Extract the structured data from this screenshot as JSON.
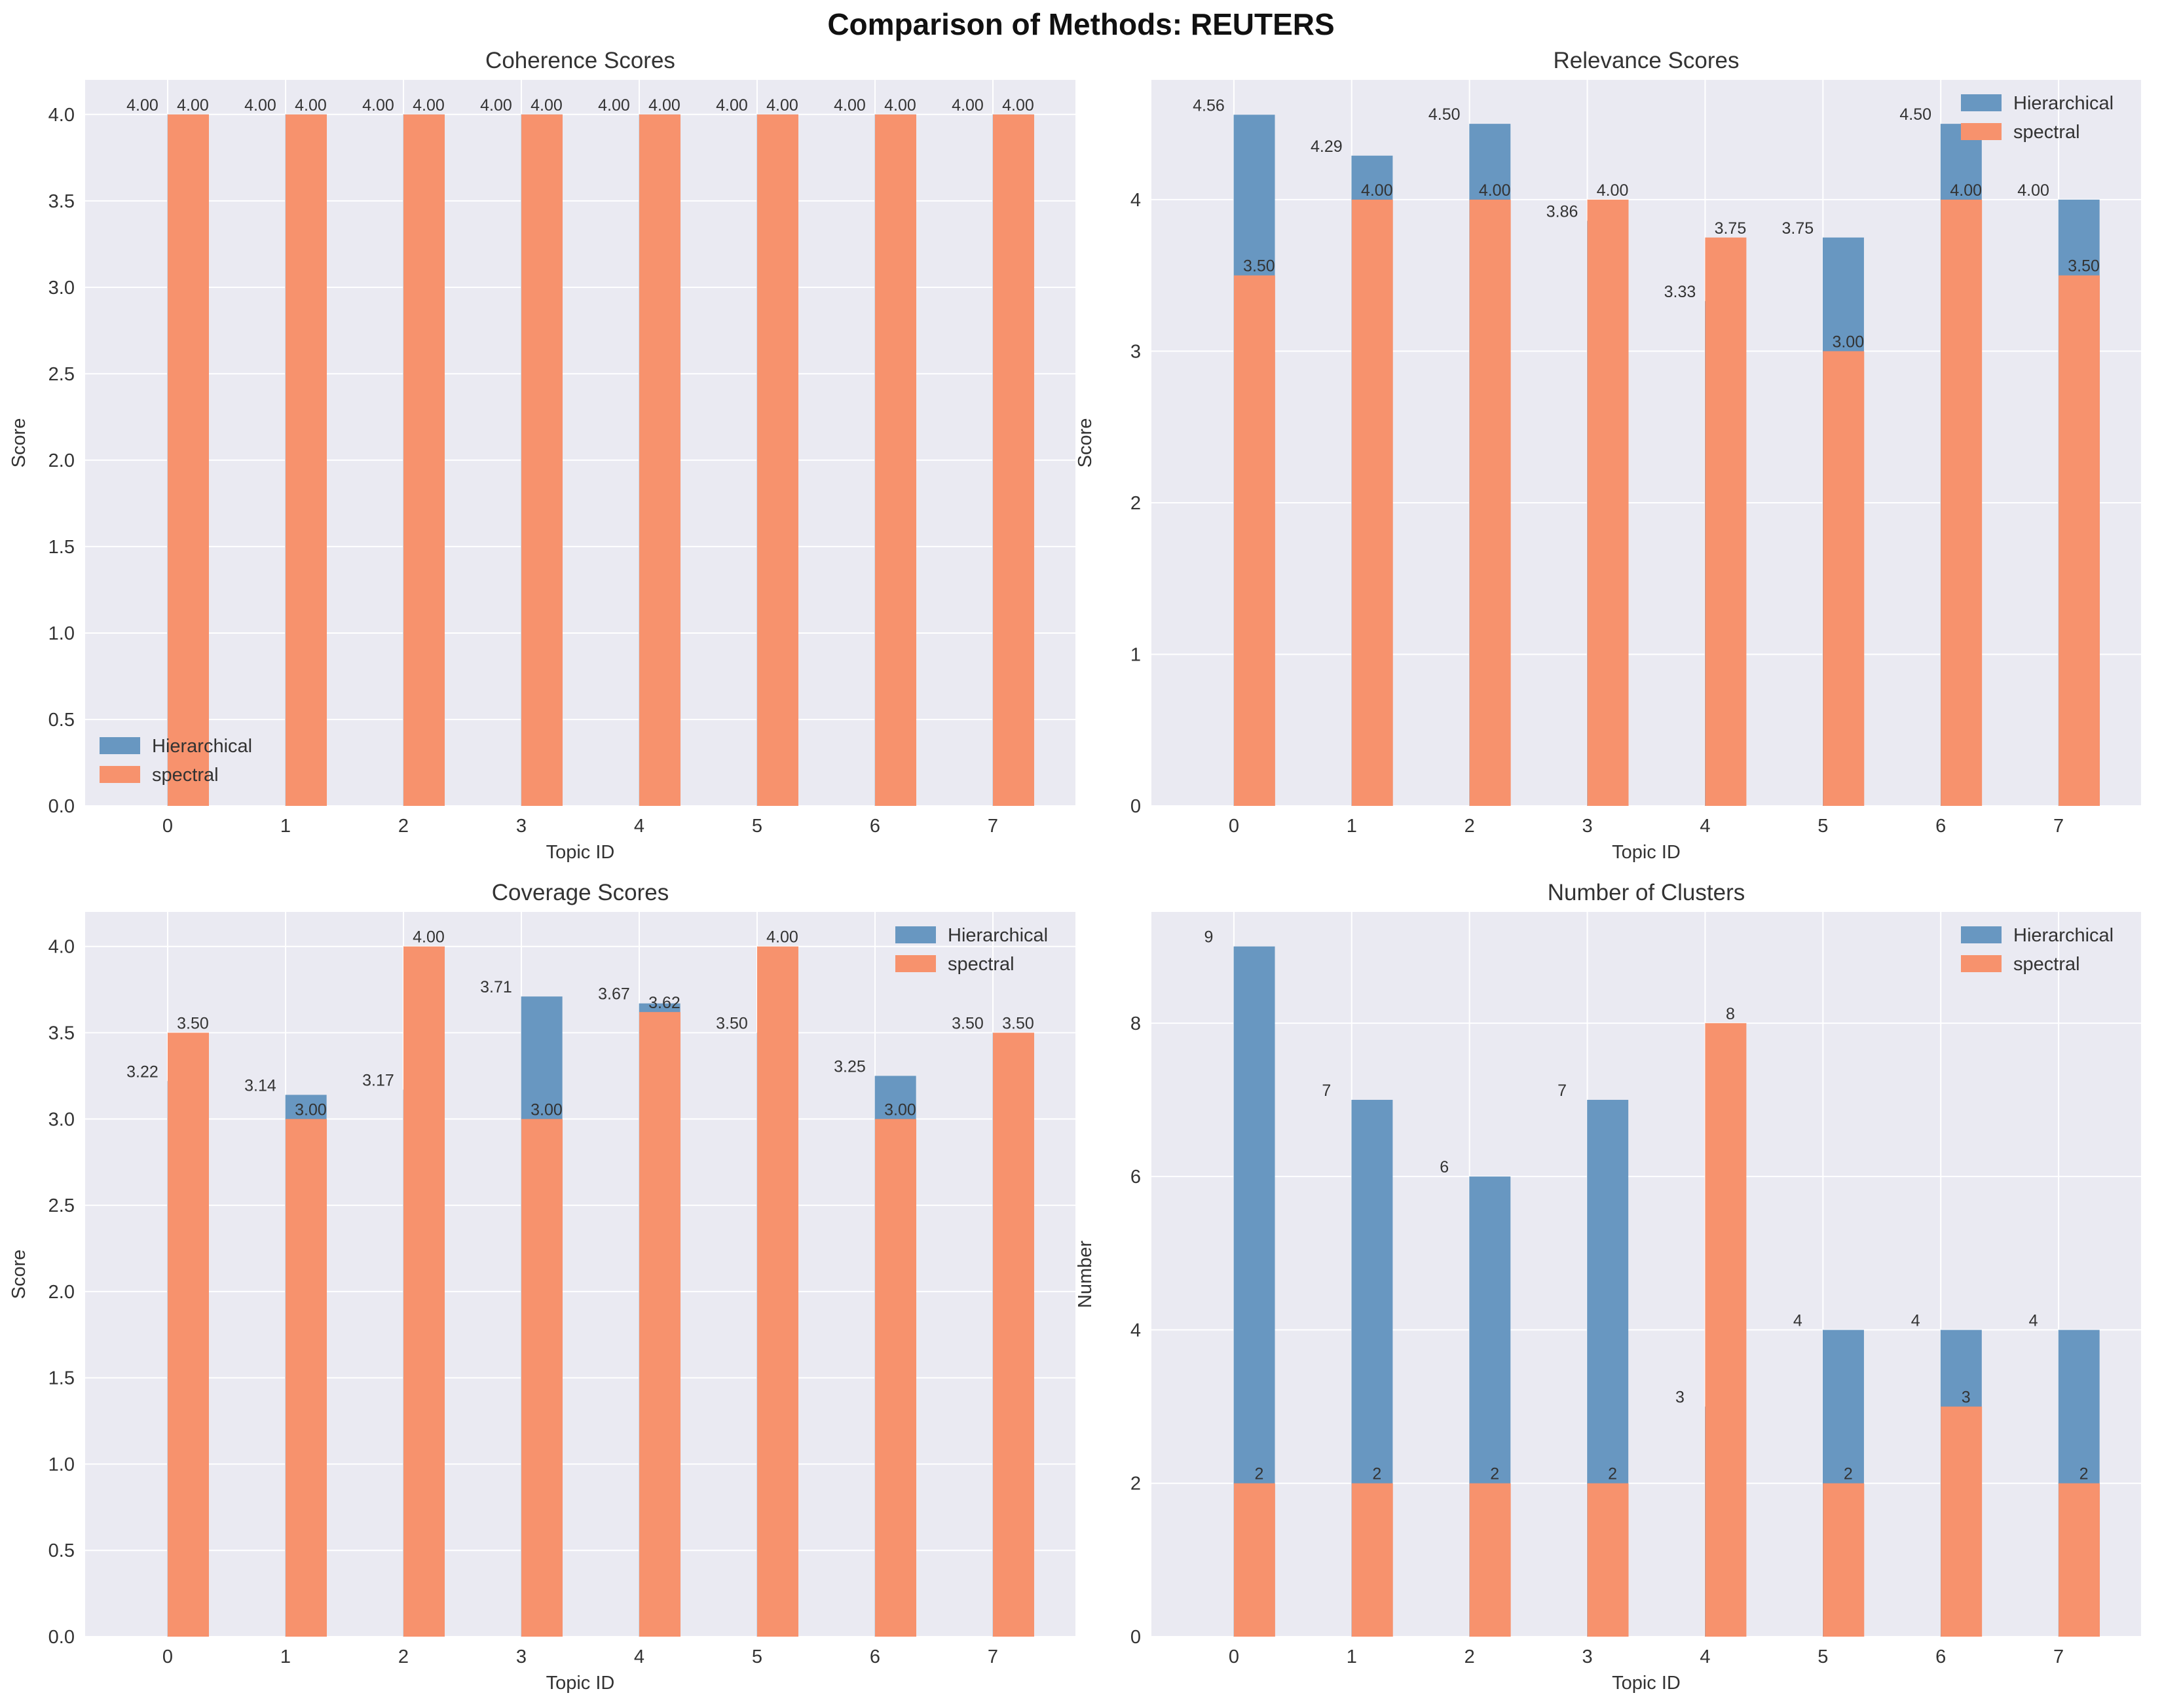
{
  "title": "Comparison of Methods: REUTERS",
  "colors": {
    "Hierarchical": "#6897c1",
    "spectral": "#f7926d",
    "axes_bg": "#eaeaf2",
    "grid": "#ffffff"
  },
  "chart_data": [
    {
      "type": "bar",
      "title": "Coherence Scores",
      "xlabel": "Topic ID",
      "ylabel": "Score",
      "categories": [
        "0",
        "1",
        "2",
        "3",
        "4",
        "5",
        "6",
        "7"
      ],
      "series": [
        {
          "name": "Hierarchical",
          "values": [
            4.0,
            4.0,
            4.0,
            4.0,
            4.0,
            4.0,
            4.0,
            4.0
          ],
          "labels": [
            "4.00",
            "4.00",
            "4.00",
            "4.00",
            "4.00",
            "4.00",
            "4.00",
            "4.00"
          ]
        },
        {
          "name": "spectral",
          "values": [
            4.0,
            4.0,
            4.0,
            4.0,
            4.0,
            4.0,
            4.0,
            4.0
          ],
          "labels": [
            "4.00",
            "4.00",
            "4.00",
            "4.00",
            "4.00",
            "4.00",
            "4.00",
            "4.00"
          ]
        }
      ],
      "ylim": [
        0,
        4.2
      ],
      "yticks": [
        "0.0",
        "0.5",
        "1.0",
        "1.5",
        "2.0",
        "2.5",
        "3.0",
        "3.5",
        "4.0"
      ],
      "grid": true,
      "legend": "lower-left"
    },
    {
      "type": "bar",
      "title": "Relevance Scores",
      "xlabel": "Topic ID",
      "ylabel": "Score",
      "categories": [
        "0",
        "1",
        "2",
        "3",
        "4",
        "5",
        "6",
        "7"
      ],
      "series": [
        {
          "name": "Hierarchical",
          "values": [
            4.56,
            4.29,
            4.5,
            3.86,
            3.33,
            3.75,
            4.5,
            4.0
          ],
          "labels": [
            "4.56",
            "4.29",
            "4.50",
            "3.86",
            "3.33",
            "3.75",
            "4.50",
            "4.00"
          ]
        },
        {
          "name": "spectral",
          "values": [
            3.5,
            4.0,
            4.0,
            4.0,
            3.75,
            3.0,
            4.0,
            3.5
          ],
          "labels": [
            "3.50",
            "4.00",
            "4.00",
            "4.00",
            "3.75",
            "3.00",
            "4.00",
            "3.50"
          ]
        }
      ],
      "ylim": [
        0,
        4.79
      ],
      "yticks": [
        "0",
        "1",
        "2",
        "3",
        "4"
      ],
      "grid": true,
      "legend": "upper-right"
    },
    {
      "type": "bar",
      "title": "Coverage Scores",
      "xlabel": "Topic ID",
      "ylabel": "Score",
      "categories": [
        "0",
        "1",
        "2",
        "3",
        "4",
        "5",
        "6",
        "7"
      ],
      "series": [
        {
          "name": "Hierarchical",
          "values": [
            3.22,
            3.14,
            3.17,
            3.71,
            3.67,
            3.5,
            3.25,
            3.5
          ],
          "labels": [
            "3.22",
            "3.14",
            "3.17",
            "3.71",
            "3.67",
            "3.50",
            "3.25",
            "3.50"
          ]
        },
        {
          "name": "spectral",
          "values": [
            3.5,
            3.0,
            4.0,
            3.0,
            3.62,
            4.0,
            3.0,
            3.5
          ],
          "labels": [
            "3.50",
            "3.00",
            "4.00",
            "3.00",
            "3.62",
            "4.00",
            "3.00",
            "3.50"
          ]
        }
      ],
      "ylim": [
        0,
        4.2
      ],
      "yticks": [
        "0.0",
        "0.5",
        "1.0",
        "1.5",
        "2.0",
        "2.5",
        "3.0",
        "3.5",
        "4.0"
      ],
      "grid": true,
      "legend": "upper-right"
    },
    {
      "type": "bar",
      "title": "Number of Clusters",
      "xlabel": "Topic ID",
      "ylabel": "Number",
      "categories": [
        "0",
        "1",
        "2",
        "3",
        "4",
        "5",
        "6",
        "7"
      ],
      "series": [
        {
          "name": "Hierarchical",
          "values": [
            9,
            7,
            6,
            7,
            3,
            4,
            4,
            4
          ],
          "labels": [
            "9",
            "7",
            "6",
            "7",
            "3",
            "4",
            "4",
            "4"
          ]
        },
        {
          "name": "spectral",
          "values": [
            2,
            2,
            2,
            2,
            8,
            2,
            3,
            2
          ],
          "labels": [
            "2",
            "2",
            "2",
            "2",
            "8",
            "2",
            "3",
            "2"
          ]
        }
      ],
      "ylim": [
        0,
        9.45
      ],
      "yticks": [
        "0",
        "2",
        "4",
        "6",
        "8"
      ],
      "grid": true,
      "legend": "upper-right"
    }
  ]
}
